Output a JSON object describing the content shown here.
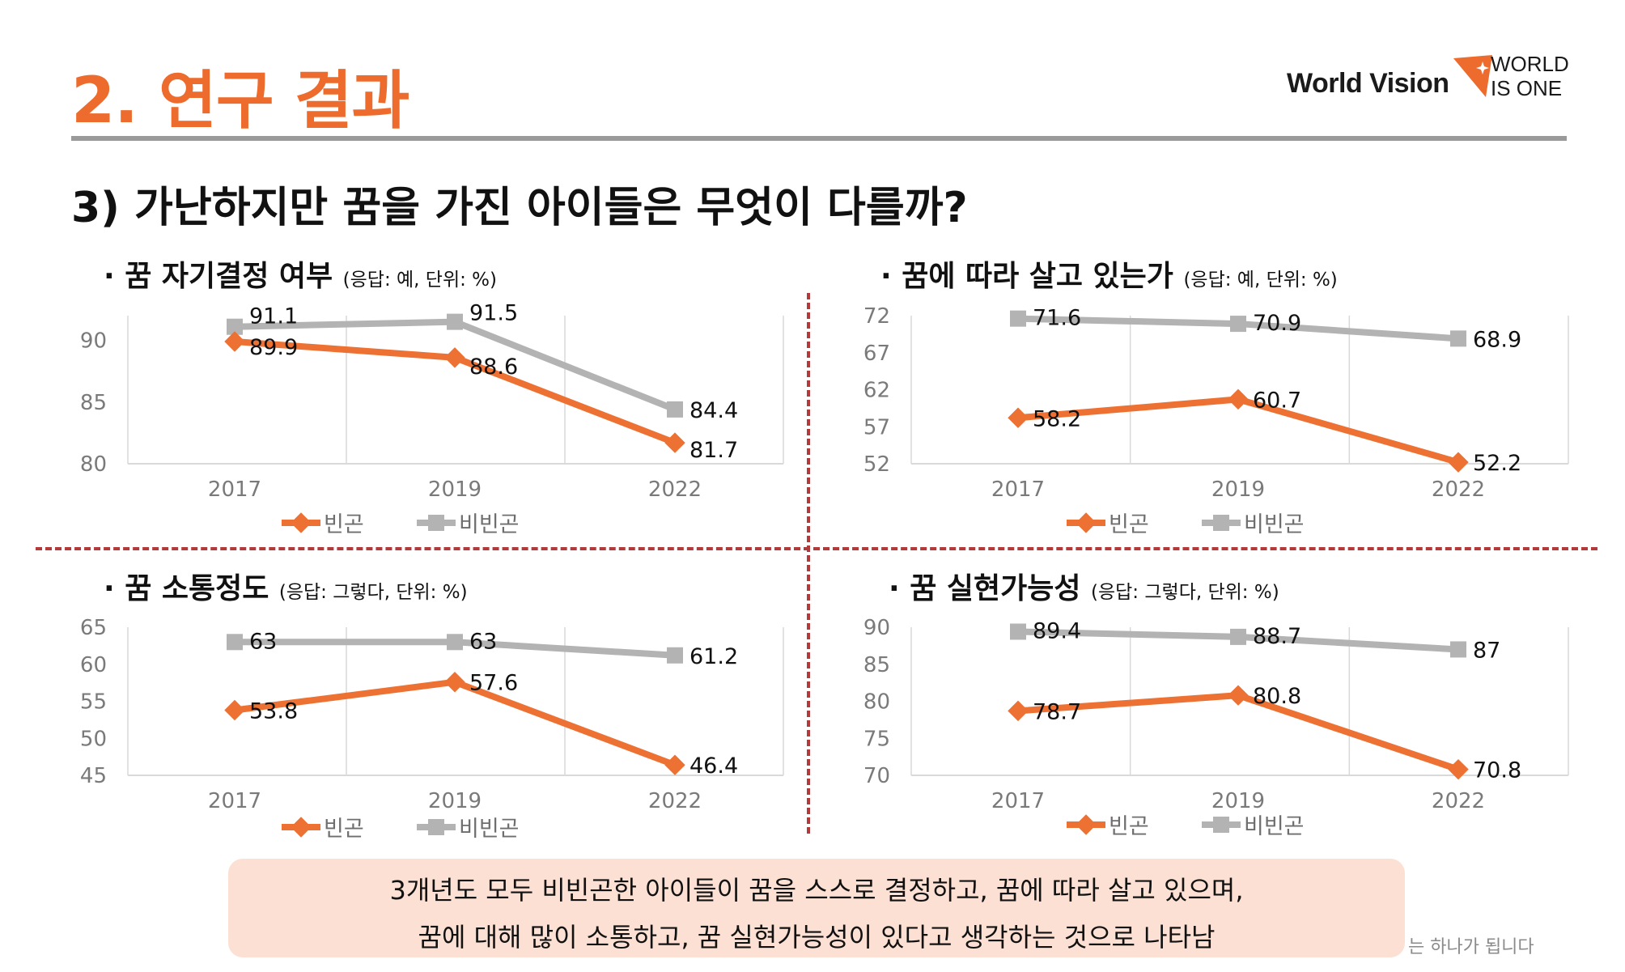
{
  "header": {
    "title": "2. 연구 결과"
  },
  "logo": {
    "brand": "World Vision",
    "tag_line1": "WORLD",
    "tag_line2": "IS ONE"
  },
  "section": {
    "title": "3) 가난하지만 꿈을 가진 아이들은 무엇이 다를까?"
  },
  "colors": {
    "accent": "#ec6b2d",
    "poor": "#ed7132",
    "nonpoor": "#b3b3b3",
    "divider": "#b33a3a",
    "summary_bg": "#fbe0d3"
  },
  "chart_data": [
    {
      "type": "line",
      "title": "· 꿈 자기결정 여부",
      "note": "(응답: 예, 단위: %)",
      "categories": [
        "2017",
        "2019",
        "2022"
      ],
      "ylim": [
        80,
        92
      ],
      "yticks": [
        80,
        85,
        90
      ],
      "grid": true,
      "legend": "bottom",
      "series": [
        {
          "name": "빈곤",
          "values": [
            89.9,
            88.6,
            81.7
          ],
          "labels": [
            "89.9",
            "88.6",
            "81.7"
          ]
        },
        {
          "name": "비빈곤",
          "values": [
            91.1,
            91.5,
            84.4
          ],
          "labels": [
            "91.1",
            "91.5",
            "84.4"
          ]
        }
      ]
    },
    {
      "type": "line",
      "title": "· 꿈에 따라 살고 있는가",
      "note": "(응답: 예, 단위: %)",
      "categories": [
        "2017",
        "2019",
        "2022"
      ],
      "ylim": [
        52,
        72
      ],
      "yticks": [
        52,
        57,
        62,
        67,
        72
      ],
      "grid": true,
      "legend": "bottom",
      "series": [
        {
          "name": "빈곤",
          "values": [
            58.2,
            60.7,
            52.2
          ],
          "labels": [
            "58.2",
            "60.7",
            "52.2"
          ]
        },
        {
          "name": "비빈곤",
          "values": [
            71.6,
            70.9,
            68.9
          ],
          "labels": [
            "71.6",
            "70.9",
            "68.9"
          ]
        }
      ]
    },
    {
      "type": "line",
      "title": "· 꿈 소통정도",
      "note": "(응답: 그렇다, 단위: %)",
      "categories": [
        "2017",
        "2019",
        "2022"
      ],
      "ylim": [
        45,
        65
      ],
      "yticks": [
        45,
        50,
        55,
        60,
        65
      ],
      "grid": true,
      "legend": "bottom",
      "series": [
        {
          "name": "빈곤",
          "values": [
            53.8,
            57.6,
            46.4
          ],
          "labels": [
            "53.8",
            "57.6",
            "46.4"
          ]
        },
        {
          "name": "비빈곤",
          "values": [
            63,
            63,
            61.2
          ],
          "labels": [
            "63",
            "63",
            "61.2"
          ]
        }
      ]
    },
    {
      "type": "line",
      "title": "· 꿈 실현가능성",
      "note": "(응답: 그렇다, 단위: %)",
      "categories": [
        "2017",
        "2019",
        "2022"
      ],
      "ylim": [
        70,
        90
      ],
      "yticks": [
        70,
        75,
        80,
        85,
        90
      ],
      "grid": true,
      "legend": "bottom",
      "series": [
        {
          "name": "빈곤",
          "values": [
            78.7,
            80.8,
            70.8
          ],
          "labels": [
            "78.7",
            "80.8",
            "70.8"
          ]
        },
        {
          "name": "비빈곤",
          "values": [
            89.4,
            88.7,
            87
          ],
          "labels": [
            "89.4",
            "88.7",
            "87"
          ]
        }
      ]
    }
  ],
  "summary": {
    "line1": "3개년도 모두 비빈곤한 아이들이 꿈을 스스로 결정하고, 꿈에 따라 살고 있으며,",
    "line2": "꿈에 대해 많이 소통하고,  꿈 실현가능성이 있다고 생각하는 것으로 나타남"
  },
  "footer": {
    "text": "는 하나가 됩니다"
  }
}
